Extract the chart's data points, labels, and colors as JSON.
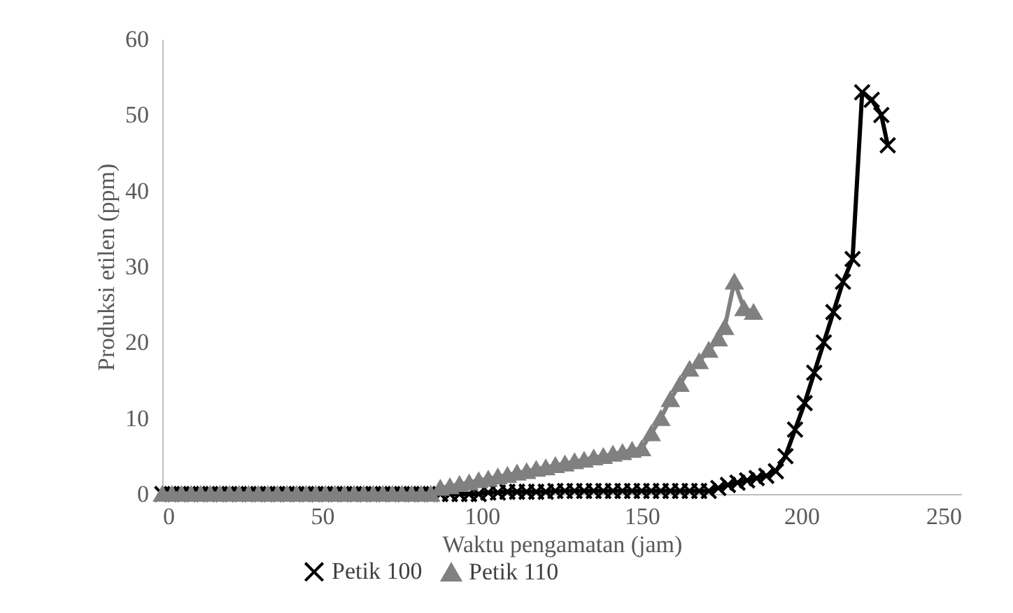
{
  "chart_data": {
    "type": "line",
    "xlabel": "Waktu pengamatan (jam)",
    "ylabel": "Produksi etilen (ppm)",
    "xlim": [
      0,
      250
    ],
    "xticks": [
      0,
      50,
      100,
      150,
      200,
      250
    ],
    "ylim": [
      0,
      60
    ],
    "yticks": [
      0,
      10,
      20,
      30,
      40,
      50,
      60
    ],
    "grid": false,
    "legend": "bottom",
    "line_style": "solid",
    "series": [
      {
        "name": "Petik 100",
        "color": "#000000",
        "marker": "cross",
        "x": [
          0,
          3,
          6,
          9,
          12,
          15,
          18,
          21,
          24,
          27,
          30,
          33,
          36,
          39,
          42,
          45,
          48,
          51,
          54,
          57,
          60,
          63,
          66,
          69,
          72,
          75,
          78,
          81,
          84,
          87,
          90,
          93,
          96,
          99,
          102,
          105,
          108,
          111,
          114,
          117,
          120,
          123,
          126,
          129,
          132,
          135,
          138,
          141,
          144,
          147,
          150,
          153,
          156,
          159,
          162,
          165,
          168,
          171,
          174,
          177,
          180,
          183,
          186,
          189,
          192,
          195,
          198,
          201,
          204,
          207,
          210,
          213,
          216,
          219,
          222,
          225,
          227
        ],
        "values": [
          0,
          0,
          0,
          0,
          0,
          0,
          0,
          0,
          0,
          0,
          0,
          0,
          0,
          0,
          0,
          0,
          0,
          0,
          0,
          0,
          0,
          0,
          0,
          0,
          0,
          0,
          0,
          0,
          0,
          0,
          0,
          0,
          0,
          0,
          0.2,
          0.2,
          0.3,
          0.3,
          0.3,
          0.3,
          0.3,
          0.4,
          0.4,
          0.4,
          0.4,
          0.4,
          0.4,
          0.4,
          0.4,
          0.4,
          0.4,
          0.4,
          0.4,
          0.4,
          0.4,
          0.4,
          0.4,
          0.4,
          0.8,
          1.2,
          1.5,
          1.8,
          2.1,
          2.4,
          3,
          5,
          8.5,
          12,
          16,
          20,
          24,
          28,
          31,
          53,
          52,
          50,
          46
        ]
      },
      {
        "name": "Petik 110",
        "color": "#808080",
        "marker": "triangle",
        "x": [
          0,
          3,
          6,
          9,
          12,
          15,
          18,
          21,
          24,
          27,
          30,
          33,
          36,
          39,
          42,
          45,
          48,
          51,
          54,
          57,
          60,
          63,
          66,
          69,
          72,
          75,
          78,
          81,
          84,
          87,
          90,
          93,
          96,
          99,
          102,
          105,
          108,
          111,
          114,
          117,
          120,
          123,
          126,
          129,
          132,
          135,
          138,
          141,
          144,
          147,
          150,
          153,
          156,
          159,
          162,
          165,
          168,
          171,
          174,
          176,
          179,
          182,
          185
        ],
        "values": [
          0,
          0,
          0,
          0,
          0,
          0,
          0,
          0,
          0,
          0,
          0,
          0,
          0,
          0,
          0,
          0,
          0,
          0,
          0,
          0,
          0,
          0,
          0,
          0,
          0,
          0,
          0,
          0,
          0,
          0.8,
          1,
          1.3,
          1.5,
          1.8,
          2,
          2.3,
          2.5,
          2.8,
          3,
          3.3,
          3.5,
          3.8,
          4,
          4.3,
          4.5,
          4.8,
          5,
          5.3,
          5.5,
          5.8,
          6,
          8,
          10,
          12.5,
          14.5,
          16.5,
          17.5,
          19,
          20.5,
          22,
          28,
          24.5,
          24
        ]
      }
    ]
  }
}
